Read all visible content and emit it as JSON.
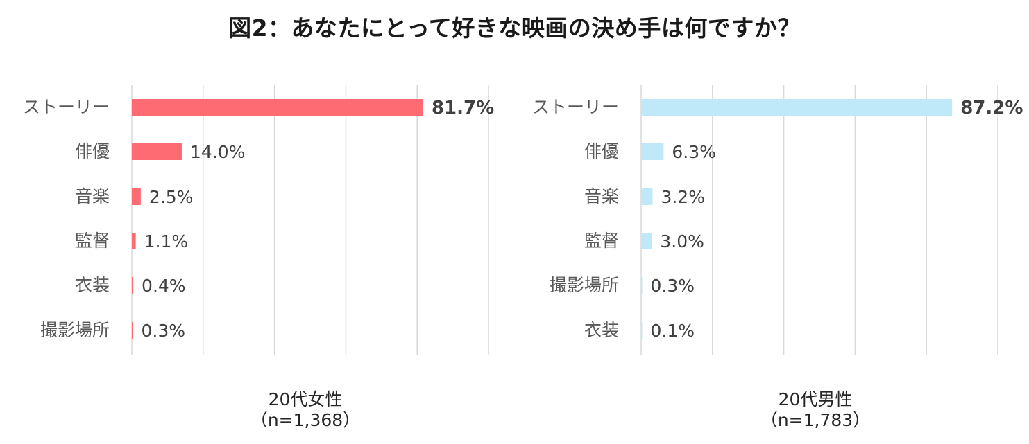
{
  "title": "図2：あなたにとって好きな映画の決め手は何ですか？",
  "chart_data": [
    {
      "type": "bar",
      "orientation": "horizontal",
      "panel_caption_line1": "20代女性",
      "panel_caption_line2": "（n=1,368）",
      "categories": [
        "ストーリー",
        "俳優",
        "音楽",
        "監督",
        "衣装",
        "撮影場所"
      ],
      "values": [
        81.7,
        14.0,
        2.5,
        1.1,
        0.4,
        0.3
      ],
      "value_labels": [
        "81.7%",
        "14.0%",
        "2.5%",
        "1.1%",
        "0.4%",
        "0.3%"
      ],
      "xlim": [
        0,
        100
      ],
      "grid": true,
      "bar_color": "#ff6b72"
    },
    {
      "type": "bar",
      "orientation": "horizontal",
      "panel_caption_line1": "20代男性",
      "panel_caption_line2": "（n=1,783）",
      "categories": [
        "ストーリー",
        "俳優",
        "音楽",
        "監督",
        "撮影場所",
        "衣装"
      ],
      "values": [
        87.2,
        6.3,
        3.2,
        3.0,
        0.3,
        0.1
      ],
      "value_labels": [
        "87.2%",
        "6.3%",
        "3.2%",
        "3.0%",
        "0.3%",
        "0.1%"
      ],
      "xlim": [
        0,
        100
      ],
      "grid": true,
      "bar_color": "#bfe8f8"
    }
  ]
}
